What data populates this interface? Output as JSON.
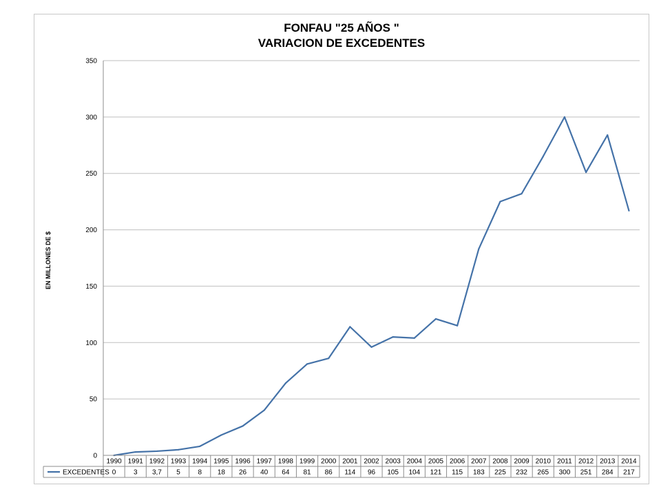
{
  "chart_data": {
    "type": "line",
    "title": "FONFAU \"25 AÑOS \"",
    "subtitle": "VARIACION DE EXCEDENTES",
    "ylabel": "EN MILLONES DE $",
    "xlabel": "",
    "ylim": [
      0,
      350
    ],
    "yticks": [
      "0",
      "50",
      "100",
      "150",
      "200",
      "250",
      "300",
      "350"
    ],
    "grid": true,
    "legend": "data-table",
    "categories": [
      "1990",
      "1991",
      "1992",
      "1993",
      "1994",
      "1995",
      "1996",
      "1997",
      "1998",
      "1999",
      "2000",
      "2001",
      "2002",
      "2003",
      "2004",
      "2005",
      "2006",
      "2007",
      "2008",
      "2009",
      "2010",
      "2011",
      "2012",
      "2013",
      "2014"
    ],
    "series": [
      {
        "name": "EXCEDENTES",
        "color": "#4472a8",
        "values": [
          0,
          3,
          3.7,
          5,
          8,
          18,
          26,
          40,
          64,
          81,
          86,
          114,
          96,
          105,
          104,
          121,
          115,
          183,
          225,
          232,
          265,
          300,
          251,
          284,
          217
        ],
        "labels": [
          "0",
          "3",
          "3,7",
          "5",
          "8",
          "18",
          "26",
          "40",
          "64",
          "81",
          "86",
          "114",
          "96",
          "105",
          "104",
          "121",
          "115",
          "183",
          "225",
          "232",
          "265",
          "300",
          "251",
          "284",
          "217"
        ]
      }
    ]
  }
}
